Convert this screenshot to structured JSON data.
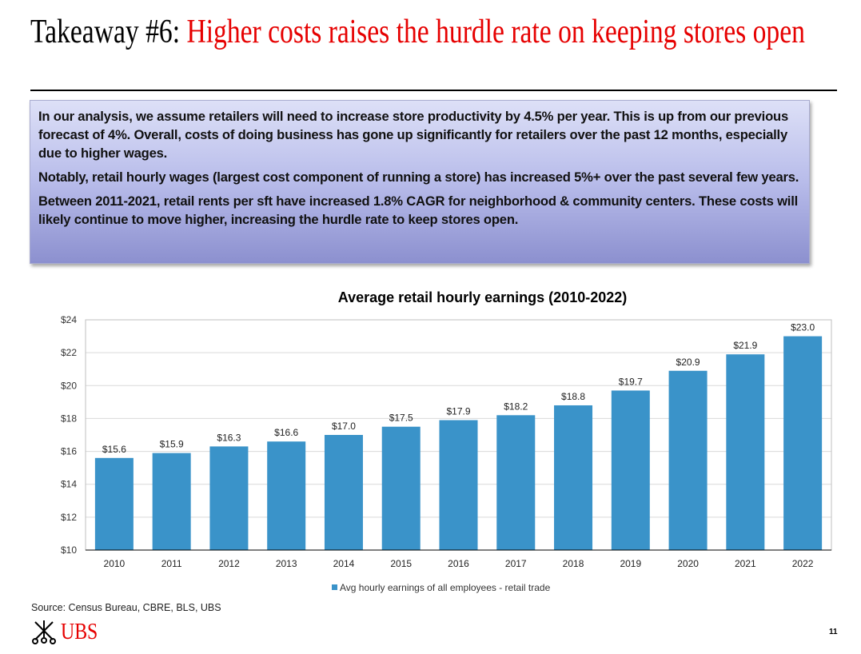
{
  "header": {
    "title_lead": "Takeaway #6: ",
    "title_rest": "Higher costs raises the hurdle rate on keeping stores open"
  },
  "summary": [
    "In our analysis, we assume retailers will need to increase store productivity by 4.5% per year. This is up from our previous forecast of 4%. Overall, costs of doing business has gone up significantly for retailers over the past 12 months, especially due to higher wages.",
    "Notably, retail hourly wages (largest cost component of running a store) has increased 5%+ over the past several few years.",
    "Between 2011-2021, retail rents per sft have increased 1.8% CAGR for neighborhood & community centers. These costs will likely continue to move higher, increasing the hurdle rate to keep stores open."
  ],
  "chart_data": {
    "type": "bar",
    "title": "Average retail hourly earnings (2010-2022)",
    "categories": [
      "2010",
      "2011",
      "2012",
      "2013",
      "2014",
      "2015",
      "2016",
      "2017",
      "2018",
      "2019",
      "2020",
      "2021",
      "2022"
    ],
    "series": [
      {
        "name": "Avg hourly earnings of all employees - retail trade",
        "values": [
          15.6,
          15.9,
          16.3,
          16.6,
          17.0,
          17.5,
          17.9,
          18.2,
          18.8,
          19.7,
          20.9,
          21.9,
          23.0
        ],
        "color": "#3a93c9"
      }
    ],
    "data_labels": [
      "$15.6",
      "$15.9",
      "$16.3",
      "$16.6",
      "$17.0",
      "$17.5",
      "$17.9",
      "$18.2",
      "$18.8",
      "$19.7",
      "$20.9",
      "$21.9",
      "$23.0"
    ],
    "yticks": [
      10,
      12,
      14,
      16,
      18,
      20,
      22,
      24
    ],
    "ytick_labels": [
      "$10",
      "$12",
      "$14",
      "$16",
      "$18",
      "$20",
      "$22",
      "$24"
    ],
    "ylim": [
      10,
      24
    ],
    "xlabel": "",
    "ylabel": "",
    "grid": true,
    "legend_position": "bottom"
  },
  "footer": {
    "source": "Source: Census Bureau, CBRE, BLS, UBS",
    "logo_text": "UBS",
    "page_number": "11"
  }
}
